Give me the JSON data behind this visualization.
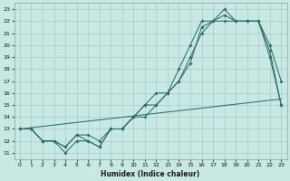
{
  "xlabel": "Humidex (Indice chaleur)",
  "bg_color": "#c8e8e4",
  "grid_color": "#a8ccca",
  "line_color": "#2d6e6a",
  "xlim": [
    -0.5,
    23.5
  ],
  "ylim": [
    10.5,
    23.5
  ],
  "xticks": [
    0,
    1,
    2,
    3,
    4,
    5,
    6,
    7,
    8,
    9,
    10,
    11,
    12,
    13,
    14,
    15,
    16,
    17,
    18,
    19,
    20,
    21,
    22,
    23
  ],
  "yticks": [
    11,
    12,
    13,
    14,
    15,
    16,
    17,
    18,
    19,
    20,
    21,
    22,
    23
  ],
  "line1_x": [
    0,
    1,
    2,
    3,
    4,
    5,
    6,
    7,
    8,
    9,
    10,
    11,
    12,
    13,
    14,
    15,
    16,
    17,
    18,
    19,
    20,
    21,
    22,
    23
  ],
  "line1_y": [
    13,
    13,
    12,
    12,
    11.5,
    12.5,
    12,
    11.5,
    13,
    13,
    14,
    15,
    15,
    16,
    17,
    19,
    21,
    22,
    23,
    22,
    22,
    22,
    20,
    17
  ],
  "line2_x": [
    0,
    1,
    2,
    3,
    4,
    5,
    6,
    7,
    8,
    9,
    10,
    11,
    12,
    13,
    14,
    15,
    16,
    17,
    18,
    19,
    20,
    21,
    22,
    23
  ],
  "line2_y": [
    13,
    13,
    12,
    12,
    11.5,
    12.5,
    12.5,
    12,
    13,
    13,
    14,
    15,
    16,
    16,
    18,
    20,
    22,
    22,
    22,
    22,
    22,
    22,
    19,
    15
  ],
  "line3_x": [
    0,
    1,
    2,
    3,
    4,
    5,
    6,
    7,
    8,
    9,
    10,
    11,
    12,
    13,
    14,
    15,
    16,
    17,
    18,
    19,
    20,
    21,
    22,
    23
  ],
  "line3_y": [
    13,
    13,
    12,
    12,
    11,
    12,
    12,
    11.5,
    13,
    13,
    14,
    14,
    15,
    16,
    17,
    18.5,
    21.5,
    22,
    22.5,
    22,
    22,
    22,
    19.5,
    15
  ],
  "line4_x": [
    0,
    23
  ],
  "line4_y": [
    13,
    15.5
  ]
}
